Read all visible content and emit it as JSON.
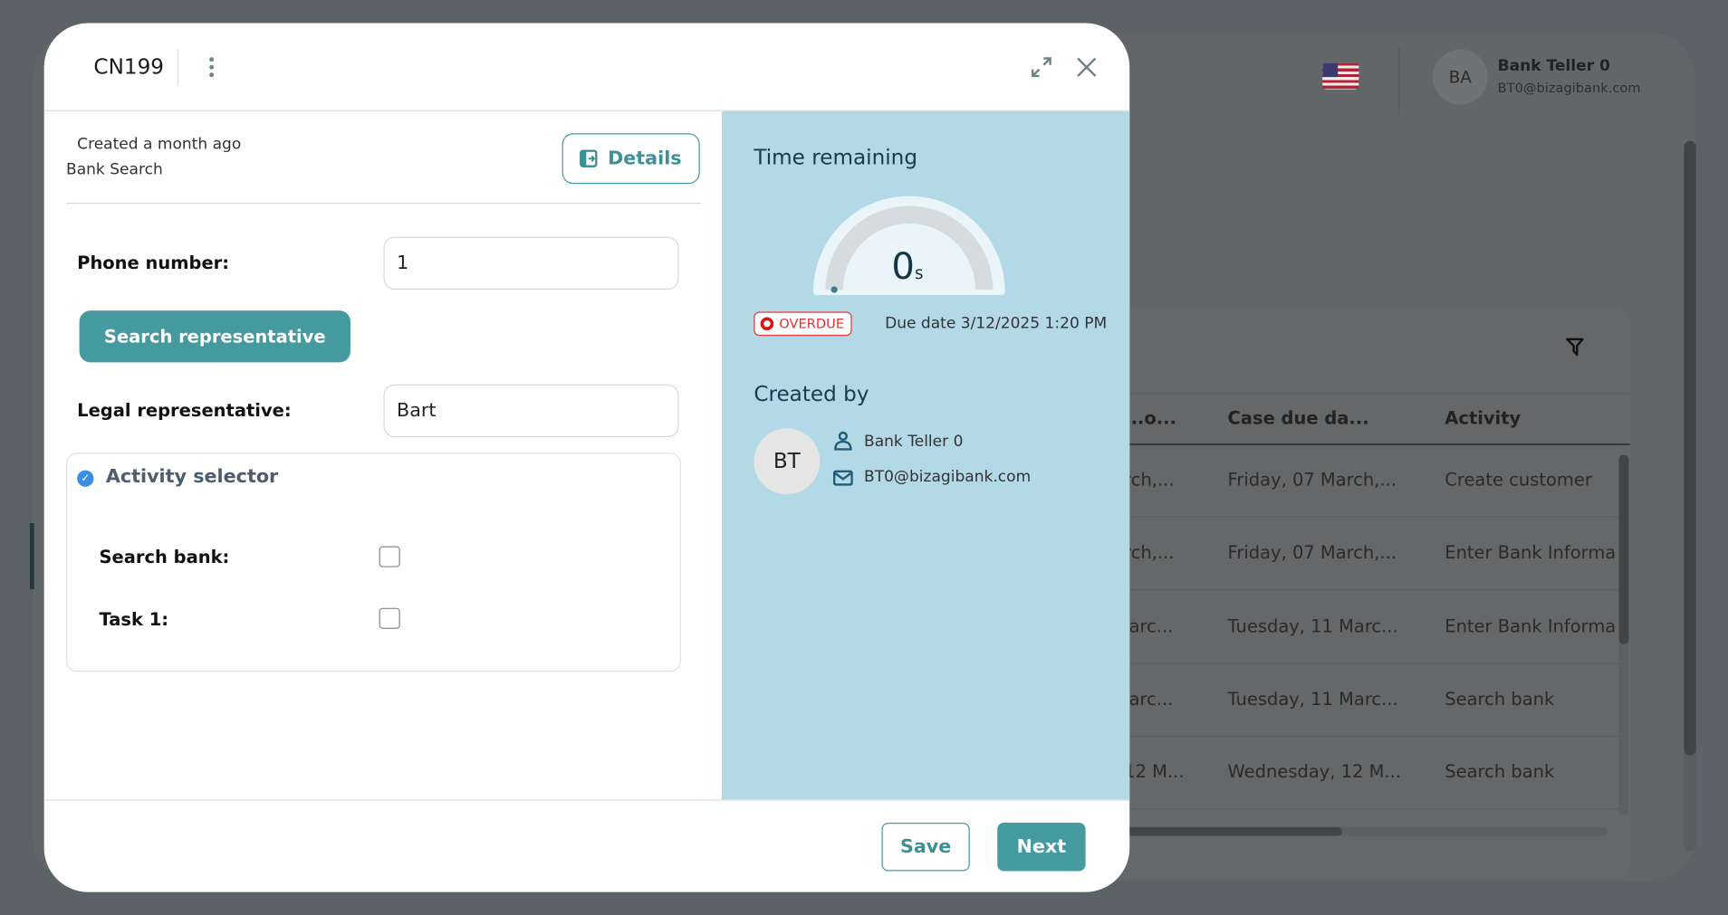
{
  "background": {
    "user": {
      "initials": "BA",
      "name": "Bank Teller 0",
      "email": "BT0@bizagibank.com"
    },
    "language_flag": "us-flag",
    "grid": {
      "columns": [
        "...o...",
        "Case due da...",
        "Activity"
      ],
      "rows": [
        [
          "rch,...",
          "Friday, 07 March,...",
          "Create customer"
        ],
        [
          "rch,...",
          "Friday, 07 March,...",
          "Enter Bank Informa"
        ],
        [
          "larc...",
          "Tuesday, 11 Marc...",
          "Enter Bank Informa"
        ],
        [
          "larc...",
          "Tuesday, 11 Marc...",
          "Search bank"
        ],
        [
          "12 M...",
          "Wednesday, 12 M...",
          "Search bank"
        ]
      ]
    }
  },
  "modal": {
    "case_number": "CN199",
    "created": "Created a month ago",
    "process": "Bank Search",
    "details_label": "Details",
    "form": {
      "phone_label": "Phone number:",
      "phone_value": "1",
      "search_button": "Search representative",
      "legal_label": "Legal representative:",
      "legal_value": "Bart",
      "activity_selector": {
        "title": "Activity selector",
        "items": [
          {
            "label": "Search bank:",
            "checked": false
          },
          {
            "label": "Task 1:",
            "checked": false
          }
        ]
      }
    },
    "side": {
      "time_title": "Time remaining",
      "time_value": "0",
      "time_unit": "s",
      "time_fraction_remaining": 0,
      "status": "OVERDUE",
      "due_date": "Due date 3/12/2025 1:20 PM",
      "created_by_title": "Created by",
      "creator": {
        "initials": "BT",
        "name": "Bank Teller 0",
        "email": "BT0@bizagibank.com"
      }
    },
    "footer": {
      "save": "Save",
      "next": "Next"
    }
  },
  "colors": {
    "accent": "#459aa0",
    "side_panel": "#b3d8e6",
    "overdue": "#e03030"
  }
}
